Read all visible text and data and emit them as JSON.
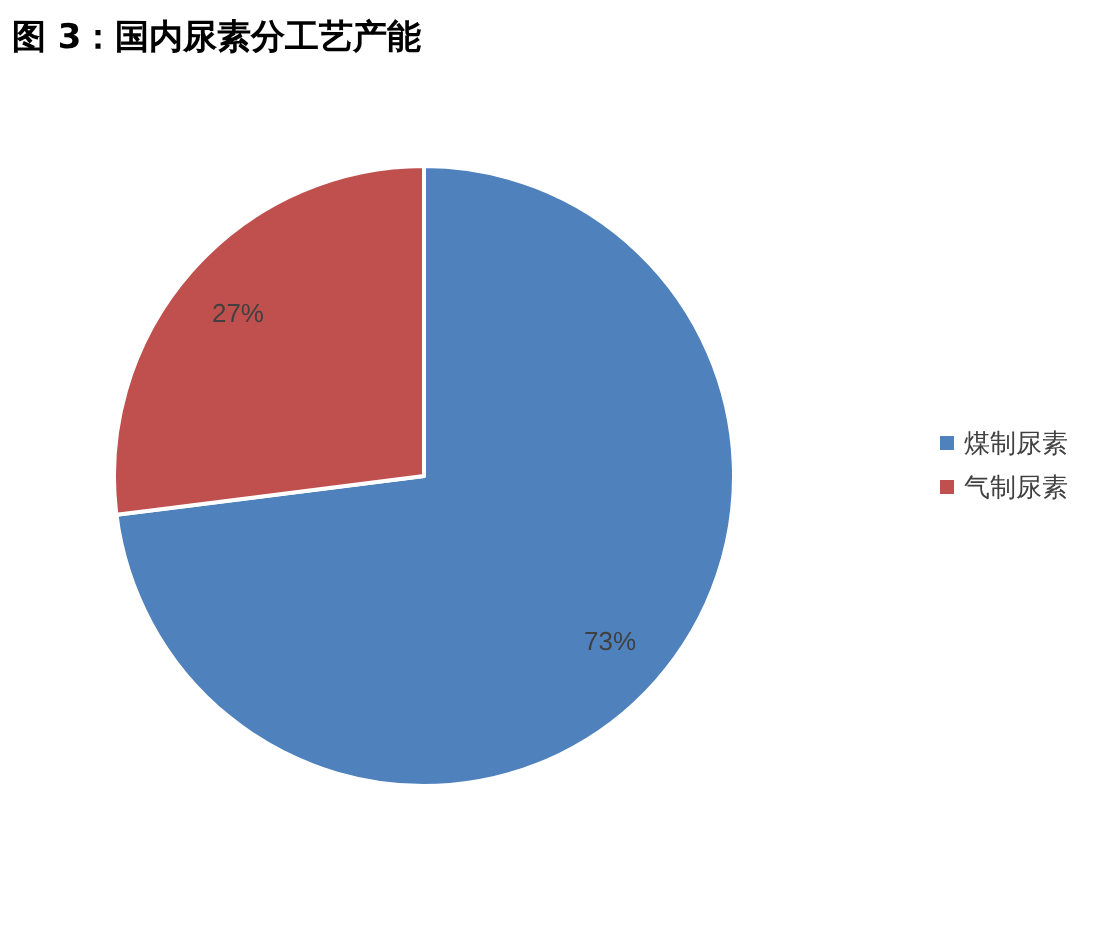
{
  "chart_data": {
    "type": "pie",
    "title": "图 3：国内尿素分工艺产能",
    "categories": [
      "煤制尿素",
      "气制尿素"
    ],
    "values": [
      73,
      27
    ],
    "colors": [
      "#4f81bd",
      "#c0504d"
    ],
    "value_labels": [
      "73%",
      "27%"
    ],
    "legend": "right"
  }
}
